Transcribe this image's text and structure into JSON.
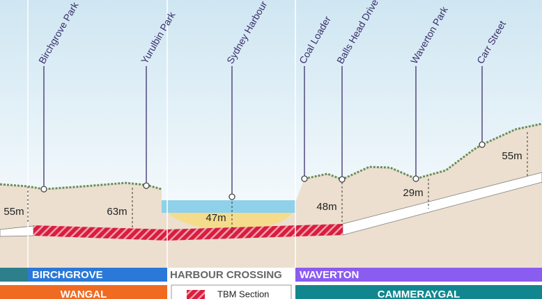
{
  "locations": [
    "Birchgrove Park",
    "Yurulbin Park",
    "Sydney Harbour",
    "Coal Loader",
    "Balls Head Drive",
    "Waverton Park",
    "Carr Street"
  ],
  "depths": [
    "55m",
    "63m",
    "47m",
    "48m",
    "29m",
    "55m"
  ],
  "sections": [
    "BIRCHGROVE",
    "HARBOUR CROSSING",
    "WAVERTON"
  ],
  "lands": [
    "WANGAL",
    "CAMMERAYGAL"
  ],
  "legend": "TBM Section"
}
